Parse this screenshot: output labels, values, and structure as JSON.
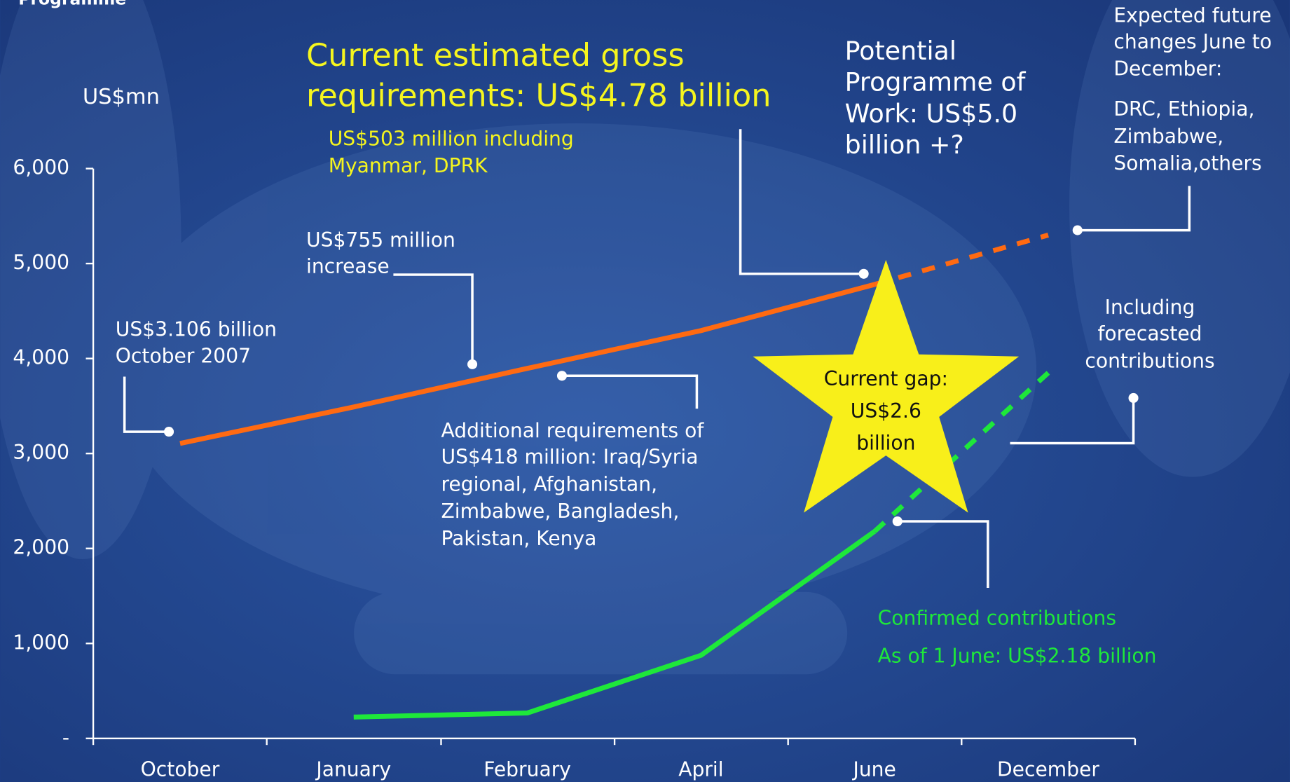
{
  "header": "Programme",
  "chart_data": {
    "type": "line",
    "title": [
      "Current estimated gross",
      "requirements: US$4.78 billion"
    ],
    "subtitle": [
      "US$503 million including",
      "Myanmar, DPRK"
    ],
    "ylabel": "US$mn",
    "categories": [
      "October",
      "January",
      "February",
      "April",
      "June",
      "December"
    ],
    "series": [
      {
        "color": "#ff6a12",
        "dashed": false,
        "values": [
          3106,
          3490,
          3896,
          4294,
          4780,
          null
        ]
      },
      {
        "color": "#ff6a12",
        "dashed": true,
        "values": [
          null,
          null,
          null,
          null,
          4780,
          5300
        ]
      },
      {
        "color": "#1ee83a",
        "dashed": false,
        "values": [
          null,
          225,
          268,
          875,
          2180,
          null
        ]
      },
      {
        "color": "#1ee83a",
        "dashed": true,
        "values": [
          null,
          null,
          null,
          null,
          2180,
          3850
        ]
      }
    ],
    "ylim": [
      0,
      6000
    ],
    "yticks": [
      {
        "value": 0,
        "label": "-"
      },
      {
        "value": 1000,
        "label": "1,000"
      },
      {
        "value": 2000,
        "label": "2,000"
      },
      {
        "value": 3000,
        "label": "3,000"
      },
      {
        "value": 4000,
        "label": "4,000"
      },
      {
        "value": 5000,
        "label": "5,000"
      },
      {
        "value": 6000,
        "label": "6,000"
      }
    ],
    "annotations": {
      "start": [
        "US$3.106 billion",
        "October 2007"
      ],
      "increase": [
        "US$755 million",
        "increase"
      ],
      "additional": [
        "Additional requirements of",
        "US$418 million: Iraq/Syria",
        "regional, Afghanistan,",
        "Zimbabwe, Bangladesh,",
        "Pakistan, Kenya"
      ],
      "potential": [
        "Potential",
        "Programme of",
        "Work: US$5.0",
        "billion +?"
      ],
      "expected": [
        "Expected future",
        "changes June to",
        "December:"
      ],
      "countries": [
        "DRC, Ethiopia,",
        "Zimbabwe,",
        "Somalia,others"
      ],
      "forecast": [
        "Including",
        "forecasted",
        "contributions"
      ],
      "gap": [
        "Current gap:",
        "US$2.6",
        "billion"
      ],
      "confirmed": [
        "Confirmed contributions",
        "As of 1 June: US$2.18 billion"
      ]
    }
  }
}
